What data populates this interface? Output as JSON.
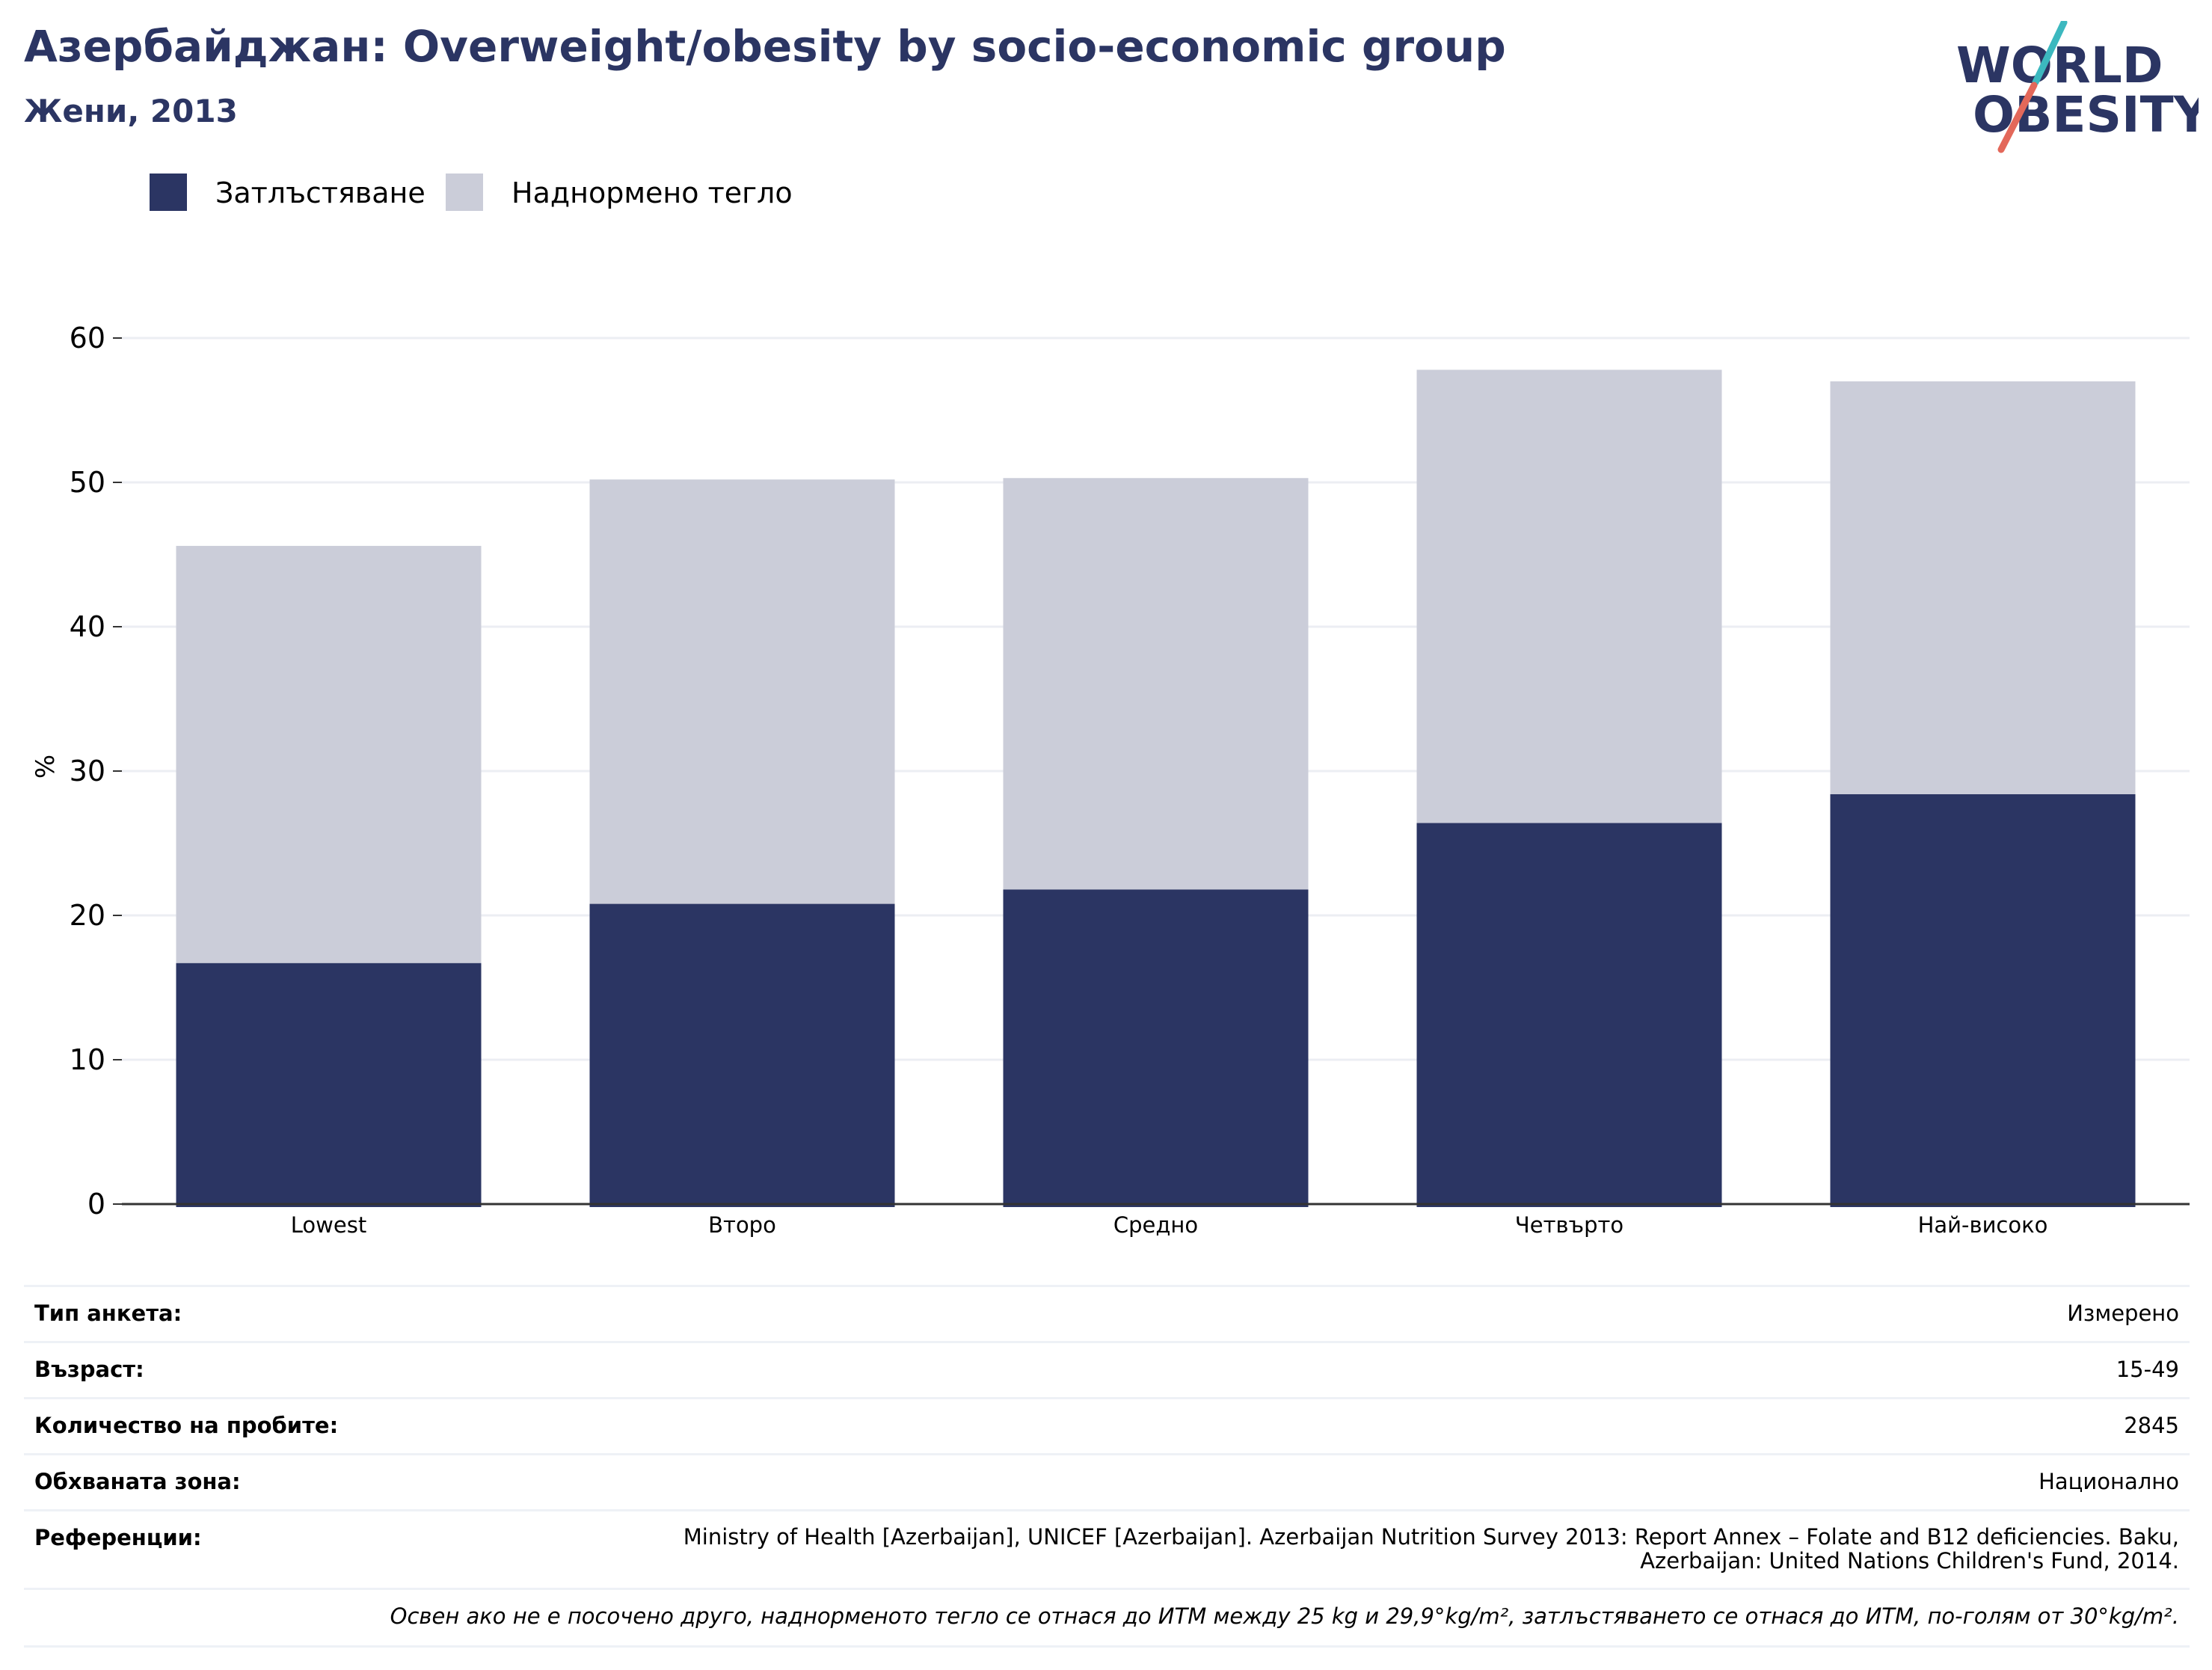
{
  "header": {
    "title": "Азербайджан: Overweight/obesity by socio-economic group",
    "subtitle": "Жени, 2013"
  },
  "logo": {
    "line1": "WORLD",
    "line2": "OBESITY",
    "colors": {
      "text": "#2b3563",
      "slash_top": "#3cb8bf",
      "slash_bottom": "#e3685a"
    }
  },
  "colors": {
    "obesity": "#2b3563",
    "overweight": "#cbcdd9",
    "axis": "#333333",
    "grid": "#eceef3"
  },
  "chart_data": {
    "type": "bar",
    "stacked": true,
    "categories": [
      "Lowest",
      "Второ",
      "Средно",
      "Четвърто",
      "Най-високо"
    ],
    "series": [
      {
        "name": "Затлъстяване",
        "color": "#2b3563",
        "values": [
          16.7,
          20.8,
          21.8,
          26.4,
          28.4
        ]
      },
      {
        "name": "Наднормено тегло",
        "color": "#cbcdd9",
        "values": [
          28.9,
          29.4,
          28.5,
          31.4,
          28.6
        ]
      }
    ],
    "totals": [
      45.6,
      50.2,
      50.3,
      57.8,
      57.0
    ],
    "ylabel": "%",
    "ylim": [
      0,
      60
    ],
    "yticks": [
      "0",
      "10",
      "20",
      "30",
      "40",
      "50",
      "60"
    ],
    "grid": true,
    "legend": "top-left"
  },
  "meta": {
    "rows": [
      {
        "key": "Тип анкета:",
        "value": "Измерено"
      },
      {
        "key": "Възраст:",
        "value": "15-49"
      },
      {
        "key": "Количество на пробите:",
        "value": "2845"
      },
      {
        "key": "Обхваната зона:",
        "value": "Национално"
      },
      {
        "key": "Референции:",
        "value": "Ministry of Health [Azerbaijan], UNICEF [Azerbaijan]. Azerbaijan Nutrition Survey 2013: Report Annex – Folate and B12 deficiencies. Baku, Azerbaijan: United Nations Children's Fund, 2014."
      }
    ],
    "note": "Освен ако не е посочено друго, наднорменото тегло се отнася до ИТМ между 25 kg и 29,9°kg/m², затлъстяването се отнася до ИТМ, по-голям от 30°kg/m²."
  }
}
